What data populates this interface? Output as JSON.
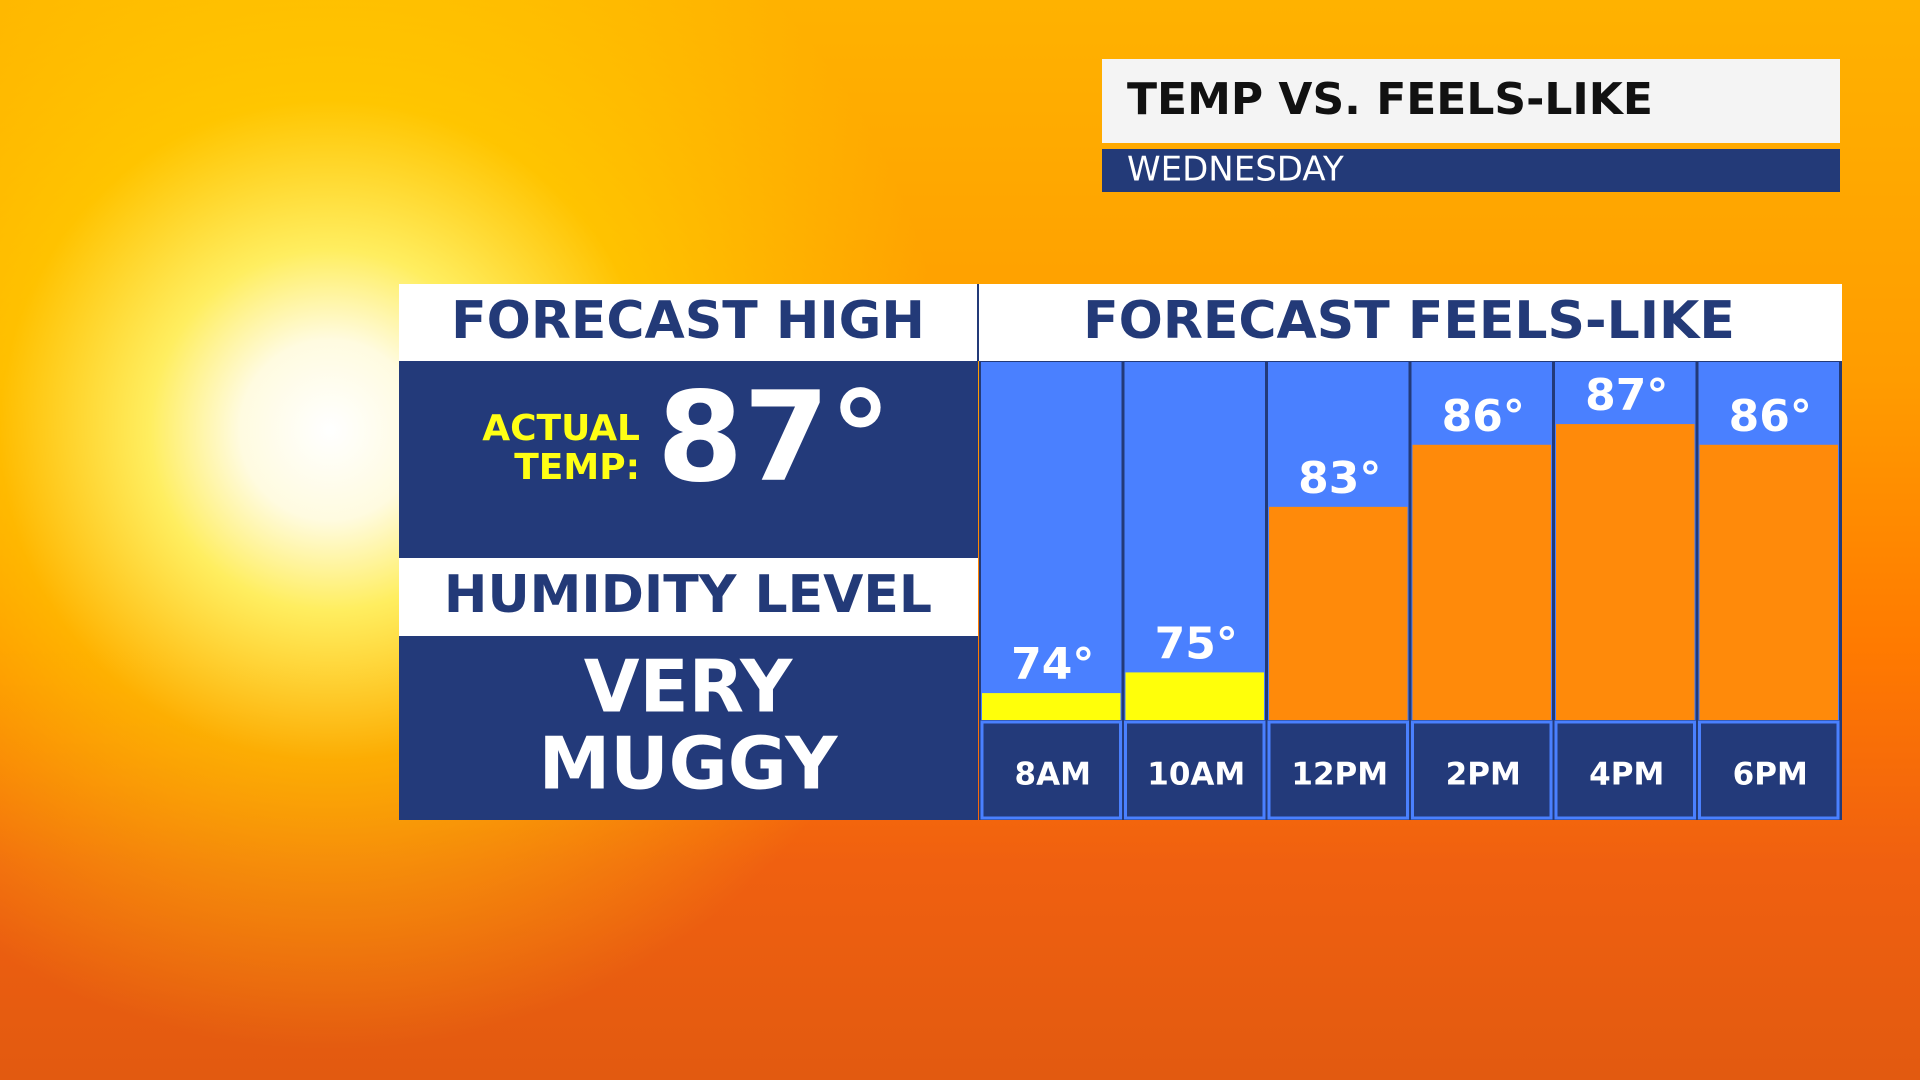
{
  "header": {
    "title": "TEMP VS. FEELS-LIKE",
    "subtitle": "WEDNESDAY"
  },
  "left_panel": {
    "heading": "FORECAST HIGH",
    "actual_label_line1": "ACTUAL",
    "actual_label_line2": "TEMP:",
    "actual_temp": "87°",
    "humidity_heading": "HUMIDITY LEVEL",
    "humidity_line1": "VERY",
    "humidity_line2": "MUGGY"
  },
  "chart_data": {
    "type": "bar",
    "title": "FORECAST FEELS-LIKE",
    "categories": [
      "8AM",
      "10AM",
      "12PM",
      "2PM",
      "4PM",
      "6PM"
    ],
    "values": [
      74,
      75,
      83,
      86,
      87,
      86
    ],
    "value_labels": [
      "74°",
      "75°",
      "83°",
      "86°",
      "87°",
      "86°"
    ],
    "colors": [
      "#ffff0a",
      "#ffff0a",
      "#ff8a0a",
      "#ff8a0a",
      "#ff8a0a",
      "#ff8a0a"
    ],
    "ylim": [
      72.7,
      90
    ]
  }
}
